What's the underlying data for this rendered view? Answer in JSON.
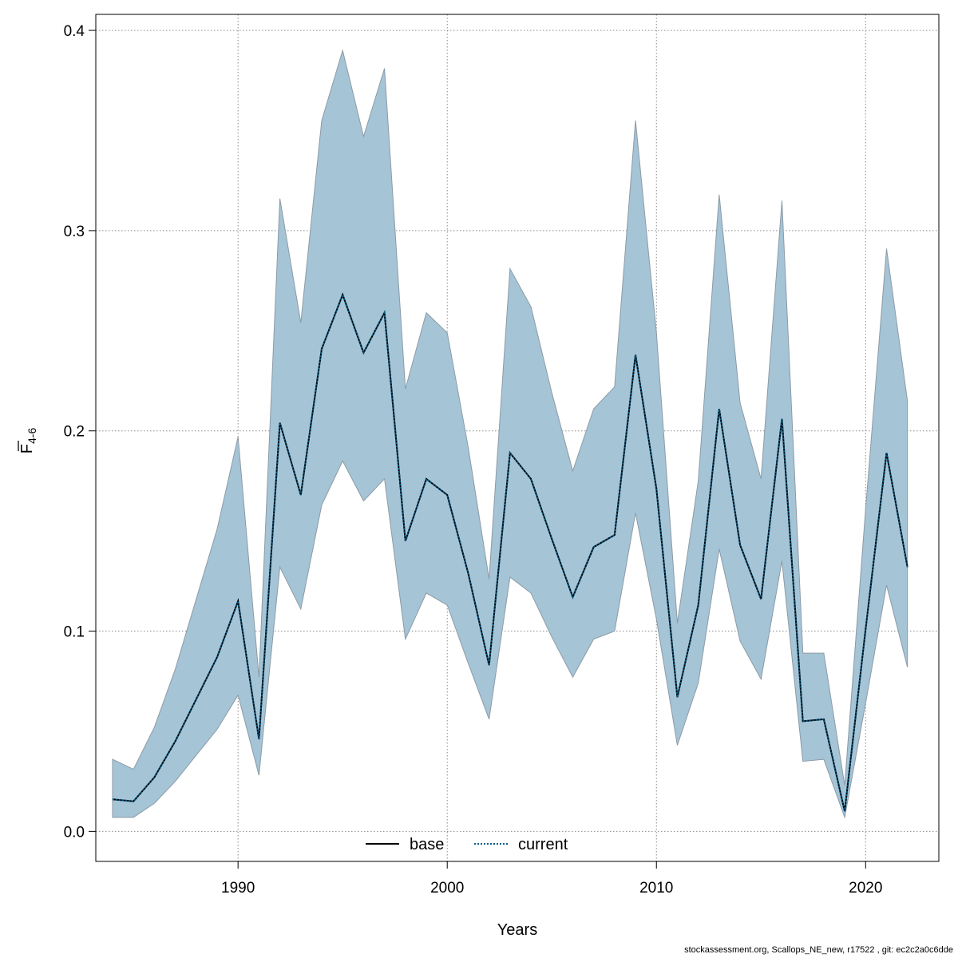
{
  "chart_data": {
    "type": "area",
    "xlabel": "Years",
    "ylabel": "F",
    "ylabel_sub": "4-6",
    "xlim": [
      1983.2,
      2023.5
    ],
    "ylim": [
      -0.015,
      0.408
    ],
    "xticks": [
      1990,
      2000,
      2010,
      2020
    ],
    "yticks": [
      0.0,
      0.1,
      0.2,
      0.3,
      0.4
    ],
    "grid": true,
    "legend_position": "bottom-center",
    "colors": {
      "band": "#a5c4d6",
      "band_edge": "#8c9ba6",
      "current": "#005a87",
      "base": "#000000"
    },
    "x": [
      1984,
      1985,
      1986,
      1987,
      1988,
      1989,
      1990,
      1991,
      1992,
      1993,
      1994,
      1995,
      1996,
      1997,
      1998,
      1999,
      2000,
      2001,
      2002,
      2003,
      2004,
      2005,
      2006,
      2007,
      2008,
      2009,
      2010,
      2011,
      2012,
      2013,
      2014,
      2015,
      2016,
      2017,
      2018,
      2019,
      2020,
      2021,
      2022
    ],
    "series": [
      {
        "name": "base",
        "style": "solid",
        "values": [
          0.016,
          0.015,
          0.027,
          0.045,
          0.066,
          0.087,
          0.115,
          0.046,
          0.204,
          0.168,
          0.241,
          0.268,
          0.239,
          0.259,
          0.145,
          0.176,
          0.168,
          0.129,
          0.083,
          0.189,
          0.176,
          0.146,
          0.117,
          0.142,
          0.148,
          0.238,
          0.171,
          0.067,
          0.113,
          0.211,
          0.143,
          0.116,
          0.206,
          0.055,
          0.056,
          0.01,
          0.101,
          0.189,
          0.132
        ]
      },
      {
        "name": "current",
        "style": "dotted",
        "values": [
          0.016,
          0.015,
          0.027,
          0.045,
          0.066,
          0.087,
          0.115,
          0.046,
          0.204,
          0.168,
          0.241,
          0.268,
          0.239,
          0.259,
          0.145,
          0.176,
          0.168,
          0.129,
          0.083,
          0.189,
          0.176,
          0.146,
          0.117,
          0.142,
          0.148,
          0.238,
          0.171,
          0.067,
          0.113,
          0.211,
          0.143,
          0.116,
          0.206,
          0.055,
          0.056,
          0.01,
          0.101,
          0.189,
          0.132
        ]
      }
    ],
    "band": {
      "lower": [
        0.007,
        0.007,
        0.014,
        0.025,
        0.038,
        0.051,
        0.068,
        0.028,
        0.132,
        0.111,
        0.163,
        0.185,
        0.165,
        0.176,
        0.096,
        0.119,
        0.113,
        0.084,
        0.056,
        0.127,
        0.119,
        0.097,
        0.077,
        0.096,
        0.1,
        0.159,
        0.106,
        0.043,
        0.074,
        0.141,
        0.095,
        0.076,
        0.135,
        0.035,
        0.036,
        0.007,
        0.064,
        0.123,
        0.082
      ],
      "upper": [
        0.036,
        0.031,
        0.052,
        0.081,
        0.116,
        0.151,
        0.197,
        0.077,
        0.316,
        0.254,
        0.355,
        0.39,
        0.347,
        0.381,
        0.221,
        0.259,
        0.249,
        0.192,
        0.126,
        0.281,
        0.262,
        0.219,
        0.18,
        0.211,
        0.222,
        0.355,
        0.249,
        0.104,
        0.175,
        0.318,
        0.214,
        0.176,
        0.315,
        0.089,
        0.089,
        0.023,
        0.161,
        0.291,
        0.215
      ]
    }
  },
  "footer": "stockassessment.org, Scallops_NE_new, r17522 , git: ec2c2a0c6dde"
}
